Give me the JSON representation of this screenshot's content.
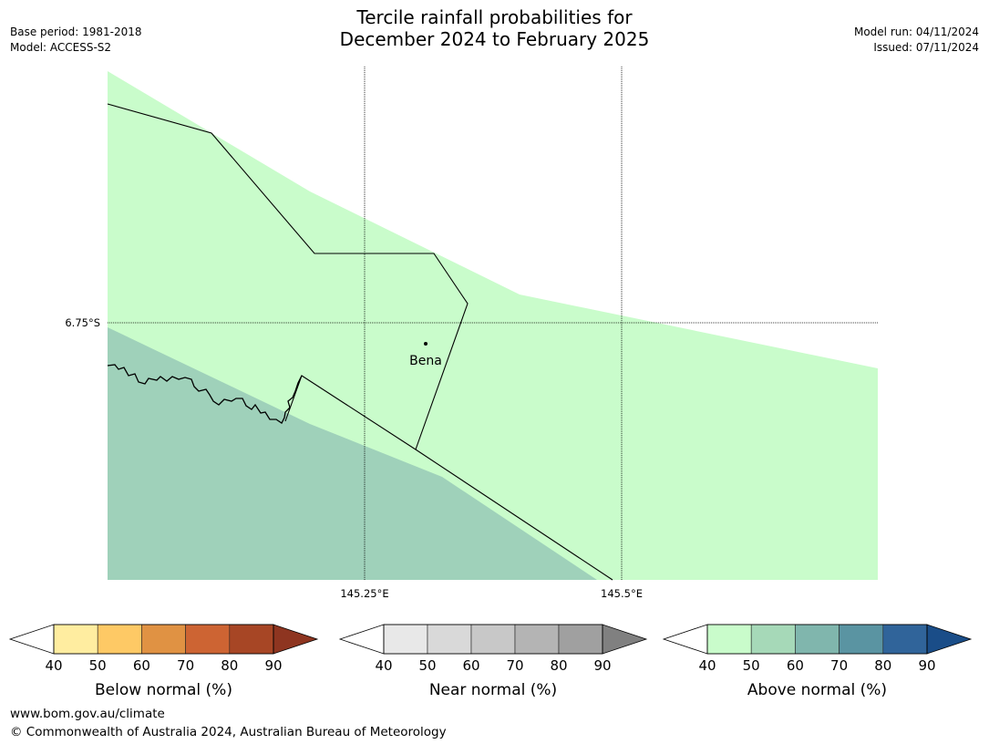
{
  "title": {
    "line1": "Tercile rainfall probabilities for",
    "line2": "December 2024 to February 2025"
  },
  "meta": {
    "base_period": "Base period: 1981-2018",
    "model": "Model: ACCESS-S2",
    "model_run": "Model run: 04/11/2024",
    "issued": "Issued: 07/11/2024"
  },
  "map": {
    "lat_label": "6.75°S",
    "lon_labels": [
      "145.25°E",
      "145.5°E"
    ],
    "place": {
      "name": "Bena"
    },
    "colors": {
      "above_40_50": "#c9fccb",
      "above_50_60": "#9fd1ba",
      "boundary": "#000000",
      "gridline": "#000000"
    }
  },
  "legends": [
    {
      "label": "Below normal (%)",
      "ticks": [
        "40",
        "50",
        "60",
        "70",
        "80",
        "90"
      ],
      "under_color": "#ffffff",
      "colors": [
        "#ffeda0",
        "#fec965",
        "#e09243",
        "#cd6433",
        "#a74625"
      ],
      "over_color": "#8e3520"
    },
    {
      "label": "Near normal (%)",
      "ticks": [
        "40",
        "50",
        "60",
        "70",
        "80",
        "90"
      ],
      "under_color": "#ffffff",
      "colors": [
        "#e8e8e8",
        "#d9d9d9",
        "#c8c8c8",
        "#b4b4b4",
        "#a0a0a0"
      ],
      "over_color": "#808080"
    },
    {
      "label": "Above normal (%)",
      "ticks": [
        "40",
        "50",
        "60",
        "70",
        "80",
        "90"
      ],
      "under_color": "#ffffff",
      "colors": [
        "#c9fccb",
        "#a6d9b8",
        "#80b6ad",
        "#5a94a2",
        "#30649a"
      ],
      "over_color": "#1a4d88"
    }
  ],
  "footer": {
    "url": "www.bom.gov.au/climate",
    "copyright": "© Commonwealth of Australia 2024, Australian Bureau of Meteorology"
  }
}
